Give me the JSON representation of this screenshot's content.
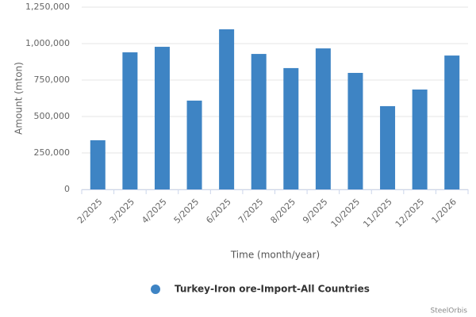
{
  "chart_data": {
    "type": "bar",
    "y_label": "Amount (mton)",
    "x_label": "Time (month/year)",
    "credits": "SteelOrbis",
    "categories": [
      "2/2025",
      "3/2025",
      "4/2025",
      "5/2025",
      "6/2025",
      "7/2025",
      "8/2025",
      "9/2025",
      "10/2025",
      "11/2025",
      "12/2025",
      "1/2026"
    ],
    "series": [
      {
        "name": "Turkey-Iron ore-Import-All Countries",
        "color": "#3e84c4",
        "values": [
          337000,
          940000,
          978000,
          609000,
          1098000,
          929000,
          832000,
          967000,
          799000,
          571000,
          685000,
          918000
        ]
      }
    ],
    "ylim": [
      0,
      1250000
    ],
    "yticks": [
      0,
      {
        "value": 250000,
        "label": "250,000"
      },
      {
        "value": 500000,
        "label": "500,000"
      },
      {
        "value": 750000,
        "label": "750,000"
      },
      {
        "value": 1000000,
        "label": "1,000,000"
      },
      {
        "value": 1250000,
        "label": "1,250,000"
      }
    ],
    "grid": true,
    "legend": "bottom"
  }
}
